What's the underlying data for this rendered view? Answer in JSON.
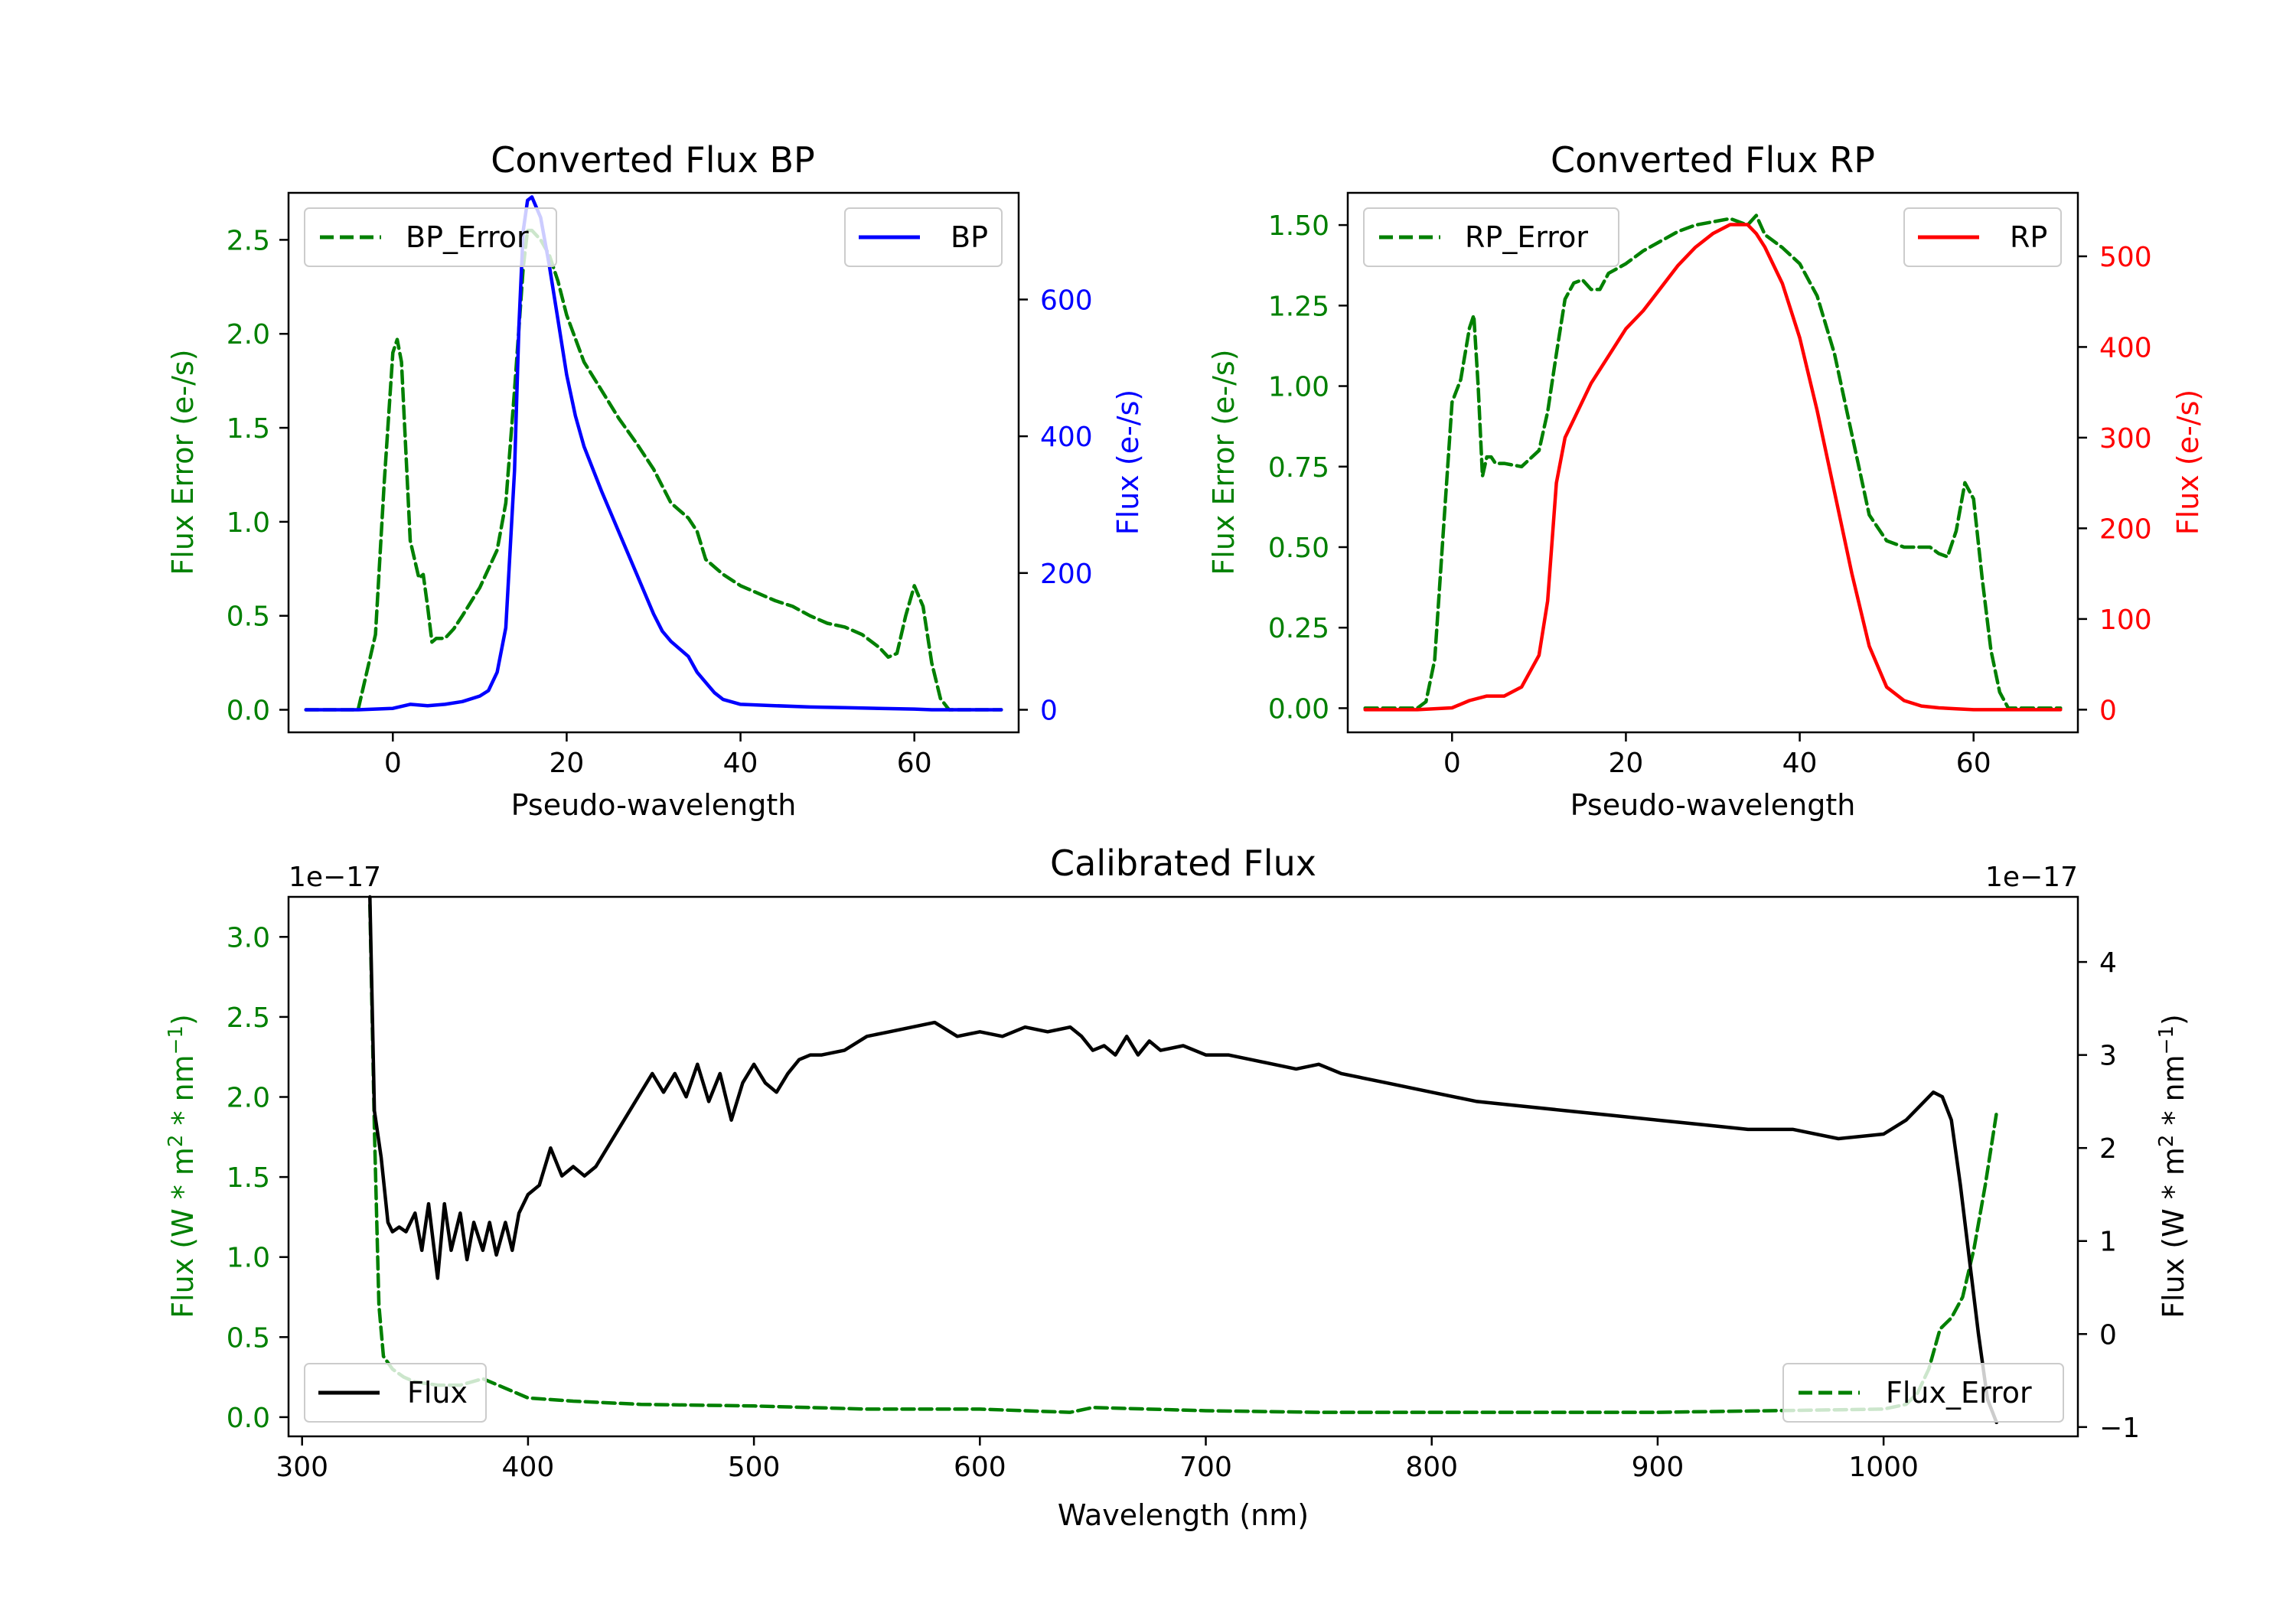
{
  "chart_data": [
    {
      "id": "bp",
      "type": "line",
      "title": "Converted Flux BP",
      "xlabel": "Pseudo-wavelength",
      "xlim": [
        -12,
        72
      ],
      "xticks": [
        0,
        20,
        40,
        60
      ],
      "left_axis": {
        "label": "Flux Error (e-/s)",
        "color": "#008000",
        "ylim": [
          -0.12,
          2.75
        ],
        "ticks": [
          0.0,
          0.5,
          1.0,
          1.5,
          2.0,
          2.5
        ],
        "decimals": 1
      },
      "right_axis": {
        "label": "Flux (e-/s)",
        "color": "#0000ff",
        "ylim": [
          -33,
          756
        ],
        "ticks": [
          0,
          200,
          400,
          600
        ],
        "decimals": 0
      },
      "series": [
        {
          "name": "BP_Error",
          "axis": "left",
          "color": "#008000",
          "dash": true,
          "x": [
            -10,
            -4,
            -2,
            -1,
            0,
            0.5,
            1,
            2,
            3,
            3.5,
            4,
            4.5,
            5,
            6,
            7,
            8,
            10,
            12,
            13,
            14,
            15,
            15.5,
            16,
            17,
            18,
            19,
            20,
            22,
            24,
            26,
            28,
            30,
            32,
            34,
            35,
            36,
            38,
            40,
            42,
            44,
            46,
            48,
            50,
            52,
            54,
            56,
            57,
            58,
            59,
            60,
            61,
            62,
            63,
            64,
            66,
            68,
            70
          ],
          "y": [
            0.0,
            0.0,
            0.4,
            1.2,
            1.9,
            1.97,
            1.85,
            0.9,
            0.7,
            0.72,
            0.55,
            0.36,
            0.38,
            0.38,
            0.43,
            0.5,
            0.65,
            0.85,
            1.1,
            1.7,
            2.35,
            2.55,
            2.55,
            2.5,
            2.42,
            2.28,
            2.1,
            1.85,
            1.7,
            1.55,
            1.42,
            1.28,
            1.1,
            1.02,
            0.95,
            0.8,
            0.72,
            0.66,
            0.62,
            0.58,
            0.55,
            0.5,
            0.46,
            0.44,
            0.4,
            0.33,
            0.28,
            0.3,
            0.5,
            0.66,
            0.55,
            0.25,
            0.06,
            0.0,
            0.0,
            0.0,
            0.0
          ]
        },
        {
          "name": "BP",
          "axis": "right",
          "color": "#0000ff",
          "dash": false,
          "x": [
            -10,
            -4,
            0,
            2,
            4,
            6,
            8,
            10,
            11,
            12,
            13,
            14,
            14.5,
            15,
            15.5,
            16,
            17,
            18,
            19,
            20,
            21,
            22,
            24,
            26,
            28,
            30,
            31,
            32,
            34,
            35,
            36,
            37,
            38,
            40,
            44,
            48,
            52,
            56,
            60,
            62,
            64,
            66,
            70
          ],
          "y": [
            0,
            0,
            2,
            8,
            6,
            8,
            12,
            20,
            28,
            55,
            120,
            350,
            560,
            700,
            745,
            750,
            720,
            650,
            570,
            490,
            430,
            385,
            320,
            260,
            200,
            140,
            115,
            100,
            78,
            55,
            40,
            25,
            15,
            8,
            6,
            4,
            3,
            2,
            1,
            0,
            0,
            0,
            0
          ]
        }
      ],
      "legend": [
        {
          "label": "BP_Error",
          "position": "upper-left"
        },
        {
          "label": "BP",
          "position": "upper-right"
        }
      ]
    },
    {
      "id": "rp",
      "type": "line",
      "title": "Converted Flux RP",
      "xlabel": "Pseudo-wavelength",
      "xlim": [
        -12,
        72
      ],
      "xticks": [
        0,
        20,
        40,
        60
      ],
      "left_axis": {
        "label": "Flux Error (e-/s)",
        "color": "#008000",
        "ylim": [
          -0.075,
          1.6
        ],
        "ticks": [
          0.0,
          0.25,
          0.5,
          0.75,
          1.0,
          1.25,
          1.5
        ],
        "decimals": 2
      },
      "right_axis": {
        "label": "Flux (e-/s)",
        "color": "#ff0000",
        "ylim": [
          -25,
          570
        ],
        "ticks": [
          0,
          100,
          200,
          300,
          400,
          500
        ],
        "decimals": 0
      },
      "series": [
        {
          "name": "RP_Error",
          "axis": "left",
          "color": "#008000",
          "dash": true,
          "x": [
            -10,
            -4,
            -3,
            -2,
            -1,
            0,
            1,
            2,
            2.5,
            3,
            3.5,
            4,
            4.5,
            5,
            6,
            8,
            10,
            11,
            12,
            13,
            14,
            15,
            16,
            17,
            18,
            20,
            22,
            24,
            26,
            28,
            30,
            32,
            34,
            35,
            36,
            38,
            40,
            42,
            44,
            46,
            48,
            50,
            52,
            54,
            55,
            56,
            57,
            58,
            59,
            60,
            61,
            62,
            63,
            64,
            66,
            68,
            70
          ],
          "y": [
            0.0,
            0.0,
            0.02,
            0.15,
            0.55,
            0.95,
            1.02,
            1.18,
            1.22,
            1.0,
            0.72,
            0.78,
            0.78,
            0.76,
            0.76,
            0.75,
            0.8,
            0.92,
            1.1,
            1.27,
            1.32,
            1.33,
            1.3,
            1.3,
            1.35,
            1.38,
            1.42,
            1.45,
            1.48,
            1.5,
            1.51,
            1.52,
            1.5,
            1.53,
            1.47,
            1.43,
            1.38,
            1.28,
            1.1,
            0.85,
            0.6,
            0.52,
            0.5,
            0.5,
            0.5,
            0.48,
            0.47,
            0.55,
            0.7,
            0.65,
            0.4,
            0.18,
            0.05,
            0.0,
            0.0,
            0.0,
            0.0
          ]
        },
        {
          "name": "RP",
          "axis": "right",
          "color": "#ff0000",
          "dash": false,
          "x": [
            -10,
            -4,
            0,
            2,
            4,
            6,
            8,
            10,
            11,
            12,
            13,
            14,
            16,
            18,
            20,
            22,
            24,
            26,
            28,
            30,
            32,
            34,
            35,
            36,
            38,
            40,
            42,
            44,
            46,
            48,
            50,
            52,
            54,
            56,
            58,
            60,
            64,
            70
          ],
          "y": [
            0,
            0,
            2,
            10,
            15,
            15,
            25,
            60,
            120,
            250,
            300,
            320,
            360,
            390,
            420,
            440,
            465,
            490,
            510,
            525,
            535,
            535,
            525,
            510,
            470,
            410,
            330,
            240,
            150,
            70,
            25,
            10,
            4,
            2,
            1,
            0,
            0,
            0
          ]
        }
      ],
      "legend": [
        {
          "label": "RP_Error",
          "position": "upper-left"
        },
        {
          "label": "RP",
          "position": "upper-right"
        }
      ]
    },
    {
      "id": "cal",
      "type": "line",
      "title": "Calibrated Flux",
      "xlabel": "Wavelength (nm)",
      "xlim": [
        294,
        1086
      ],
      "xticks": [
        300,
        400,
        500,
        600,
        700,
        800,
        900,
        1000
      ],
      "left_axis": {
        "label": "Flux (W * m^2 * nm^-1)",
        "color": "#008000",
        "offset_text": "1e−17",
        "ylim": [
          -0.12,
          3.25
        ],
        "ticks": [
          0.0,
          0.5,
          1.0,
          1.5,
          2.0,
          2.5,
          3.0
        ],
        "decimals": 1
      },
      "right_axis": {
        "label": "Flux (W * m^2 * nm^-1)",
        "color": "#000000",
        "offset_text": "1e−17",
        "ylim": [
          -1.1,
          4.7
        ],
        "ticks": [
          -1,
          0,
          1,
          2,
          3,
          4
        ],
        "decimals": 0
      },
      "series": [
        {
          "name": "Flux_Error",
          "axis": "left",
          "color": "#008000",
          "dash": true,
          "x": [
            330,
            332,
            334,
            336,
            340,
            345,
            350,
            360,
            370,
            380,
            390,
            400,
            420,
            450,
            500,
            550,
            600,
            640,
            650,
            700,
            750,
            800,
            850,
            900,
            950,
            1000,
            1010,
            1015,
            1020,
            1025,
            1030,
            1035,
            1040,
            1045,
            1050
          ],
          "y": [
            3.2,
            1.8,
            0.7,
            0.38,
            0.3,
            0.25,
            0.22,
            0.2,
            0.2,
            0.24,
            0.18,
            0.12,
            0.1,
            0.08,
            0.07,
            0.05,
            0.05,
            0.03,
            0.06,
            0.04,
            0.03,
            0.03,
            0.03,
            0.03,
            0.04,
            0.05,
            0.08,
            0.15,
            0.3,
            0.55,
            0.62,
            0.75,
            1.05,
            1.45,
            1.9
          ]
        },
        {
          "name": "Flux",
          "axis": "right",
          "color": "#000000",
          "dash": false,
          "x": [
            330,
            332,
            335,
            338,
            340,
            343,
            346,
            350,
            353,
            356,
            360,
            363,
            366,
            370,
            373,
            376,
            380,
            383,
            386,
            390,
            393,
            396,
            400,
            405,
            410,
            415,
            420,
            425,
            430,
            440,
            450,
            455,
            460,
            465,
            470,
            475,
            480,
            485,
            490,
            495,
            500,
            505,
            510,
            515,
            520,
            525,
            530,
            540,
            550,
            560,
            570,
            580,
            590,
            600,
            610,
            620,
            630,
            640,
            645,
            650,
            655,
            660,
            665,
            670,
            675,
            680,
            690,
            700,
            710,
            720,
            730,
            740,
            750,
            760,
            780,
            800,
            820,
            840,
            860,
            880,
            900,
            920,
            940,
            960,
            980,
            1000,
            1010,
            1018,
            1022,
            1026,
            1030,
            1034,
            1038,
            1042,
            1046,
            1050
          ],
          "y": [
            4.7,
            2.4,
            1.9,
            1.2,
            1.1,
            1.15,
            1.1,
            1.3,
            0.9,
            1.4,
            0.6,
            1.4,
            0.9,
            1.3,
            0.8,
            1.2,
            0.9,
            1.2,
            0.85,
            1.2,
            0.9,
            1.3,
            1.5,
            1.6,
            2.0,
            1.7,
            1.8,
            1.7,
            1.8,
            2.2,
            2.6,
            2.8,
            2.6,
            2.8,
            2.55,
            2.9,
            2.5,
            2.8,
            2.3,
            2.7,
            2.9,
            2.7,
            2.6,
            2.8,
            2.95,
            3.0,
            3.0,
            3.05,
            3.2,
            3.25,
            3.3,
            3.35,
            3.2,
            3.25,
            3.2,
            3.3,
            3.25,
            3.3,
            3.2,
            3.05,
            3.1,
            3.0,
            3.2,
            3.0,
            3.15,
            3.05,
            3.1,
            3.0,
            3.0,
            2.95,
            2.9,
            2.85,
            2.9,
            2.8,
            2.7,
            2.6,
            2.5,
            2.45,
            2.4,
            2.35,
            2.3,
            2.25,
            2.2,
            2.2,
            2.1,
            2.15,
            2.3,
            2.5,
            2.6,
            2.55,
            2.3,
            1.6,
            0.8,
            0.0,
            -0.7,
            -0.95
          ]
        }
      ],
      "legend": [
        {
          "label": "Flux",
          "position": "lower-left"
        },
        {
          "label": "Flux_Error",
          "position": "lower-right"
        }
      ]
    }
  ]
}
